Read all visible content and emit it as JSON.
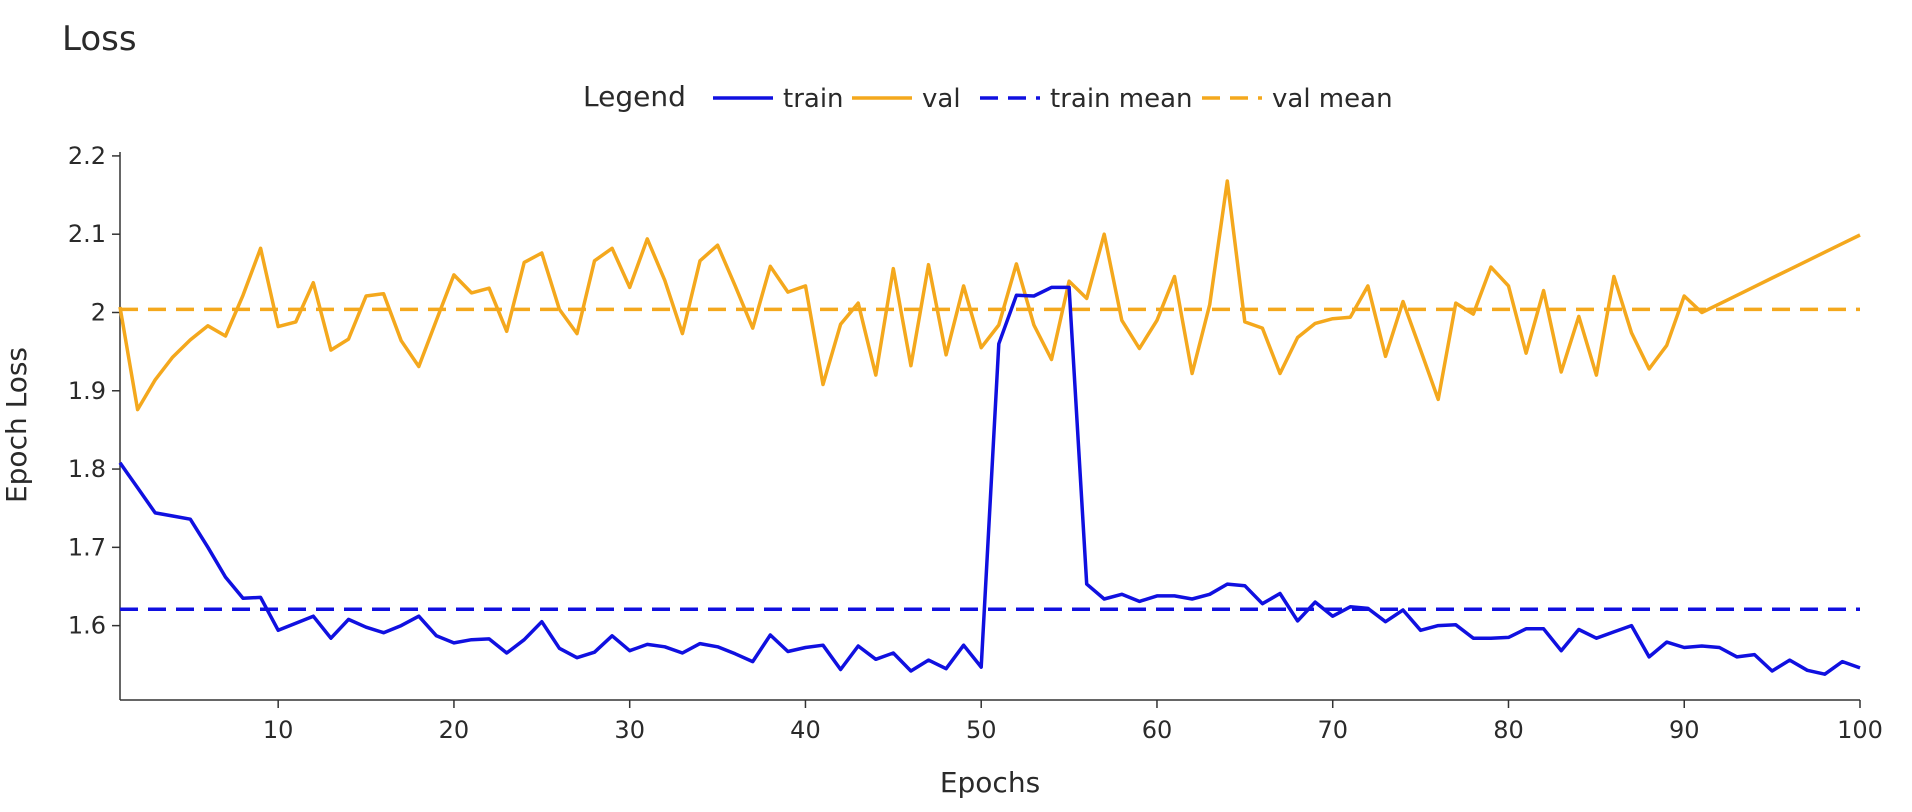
{
  "chart_data": {
    "type": "line",
    "title": "Loss",
    "xlabel": "Epochs",
    "ylabel": "Epoch Loss",
    "xlim": [
      1,
      100
    ],
    "ylim": [
      1.505,
      2.205
    ],
    "xticks": [
      10,
      20,
      30,
      40,
      50,
      60,
      70,
      80,
      90,
      100
    ],
    "yticks": [
      1.6,
      1.7,
      1.8,
      1.9,
      2.0,
      2.1,
      2.2
    ],
    "ytick_labels": [
      "1.6",
      "1.7",
      "1.8",
      "1.9",
      "2",
      "2.1",
      "2.2"
    ],
    "grid": false,
    "legend": {
      "title": "Legend",
      "position": "top-center"
    },
    "x": [
      1,
      2,
      3,
      4,
      5,
      6,
      7,
      8,
      9,
      10,
      11,
      12,
      13,
      14,
      15,
      16,
      17,
      18,
      19,
      20,
      21,
      22,
      23,
      24,
      25,
      26,
      27,
      28,
      29,
      30,
      31,
      32,
      33,
      34,
      35,
      36,
      37,
      38,
      39,
      40,
      41,
      42,
      43,
      44,
      45,
      46,
      47,
      48,
      49,
      50,
      51,
      52,
      53,
      54,
      55,
      56,
      57,
      58,
      59,
      60,
      61,
      62,
      63,
      64,
      65,
      66,
      67,
      68,
      69,
      70,
      71,
      72,
      73,
      74,
      75,
      76,
      77,
      78,
      79,
      80,
      81,
      82,
      83,
      84,
      85,
      86,
      87,
      88,
      89,
      90,
      91,
      92,
      93,
      94,
      95,
      96,
      97,
      98,
      99,
      100
    ],
    "series": [
      {
        "name": "train",
        "color": "#1010e0",
        "dash": "solid",
        "values": [
          1.808,
          1.776,
          1.744,
          1.74,
          1.736,
          1.7,
          1.662,
          1.635,
          1.636,
          1.594,
          1.603,
          1.612,
          1.584,
          1.608,
          1.598,
          1.591,
          1.6,
          1.612,
          1.587,
          1.578,
          1.582,
          1.583,
          1.565,
          1.582,
          1.605,
          1.571,
          1.559,
          1.566,
          1.587,
          1.568,
          1.576,
          1.573,
          1.565,
          1.577,
          1.573,
          1.564,
          1.554,
          1.588,
          1.567,
          1.572,
          1.575,
          1.544,
          1.574,
          1.557,
          1.565,
          1.542,
          1.556,
          1.545,
          1.575,
          1.547,
          1.96,
          2.022,
          2.021,
          2.032,
          2.032,
          1.653,
          1.634,
          1.64,
          1.631,
          1.638,
          1.638,
          1.634,
          1.64,
          1.653,
          1.651,
          1.628,
          1.641,
          1.606,
          1.63,
          1.612,
          1.624,
          1.622,
          1.605,
          1.62,
          1.594,
          1.6,
          1.601,
          1.584,
          1.584,
          1.585,
          1.596,
          1.596,
          1.568,
          1.595,
          1.584,
          1.592,
          1.6,
          1.56,
          1.579,
          1.572,
          1.574,
          1.572,
          1.56,
          1.563,
          1.542,
          1.556,
          1.543,
          1.538,
          1.554,
          1.546
        ]
      },
      {
        "name": "val",
        "color": "#f4a81d",
        "dash": "solid",
        "values": [
          2.007,
          1.876,
          1.914,
          1.943,
          1.965,
          1.983,
          1.97,
          2.022,
          2.082,
          1.982,
          1.988,
          2.038,
          1.952,
          1.966,
          2.021,
          2.024,
          1.964,
          1.931,
          1.99,
          2.048,
          2.025,
          2.031,
          1.976,
          2.064,
          2.076,
          2.004,
          1.973,
          2.066,
          2.082,
          2.032,
          2.094,
          2.041,
          1.973,
          2.066,
          2.086,
          2.034,
          1.98,
          2.059,
          2.026,
          2.034,
          1.908,
          1.985,
          2.012,
          1.92,
          2.056,
          1.932,
          2.061,
          1.946,
          2.034,
          1.955,
          1.984,
          2.062,
          1.984,
          1.94,
          2.04,
          2.018,
          2.1,
          1.99,
          1.954,
          1.99,
          2.046,
          1.922,
          2.01,
          2.168,
          1.988,
          1.98,
          1.922,
          1.968,
          1.986,
          1.992,
          1.994,
          2.034,
          1.944,
          2.014,
          1.952,
          1.889,
          2.012,
          1.998,
          2.058,
          2.034,
          1.948,
          2.028,
          1.924,
          1.995,
          1.92,
          2.046,
          1.974,
          1.928,
          1.958,
          2.021,
          2.0,
          2.011,
          2.022,
          2.033,
          2.044,
          2.055,
          2.066,
          2.077,
          2.088,
          2.099
        ]
      },
      {
        "name": "train mean",
        "color": "#1010e0",
        "dash": "dash",
        "values_constant": 1.621
      },
      {
        "name": "val mean",
        "color": "#f4a81d",
        "dash": "dash",
        "values_constant": 2.004
      }
    ]
  }
}
